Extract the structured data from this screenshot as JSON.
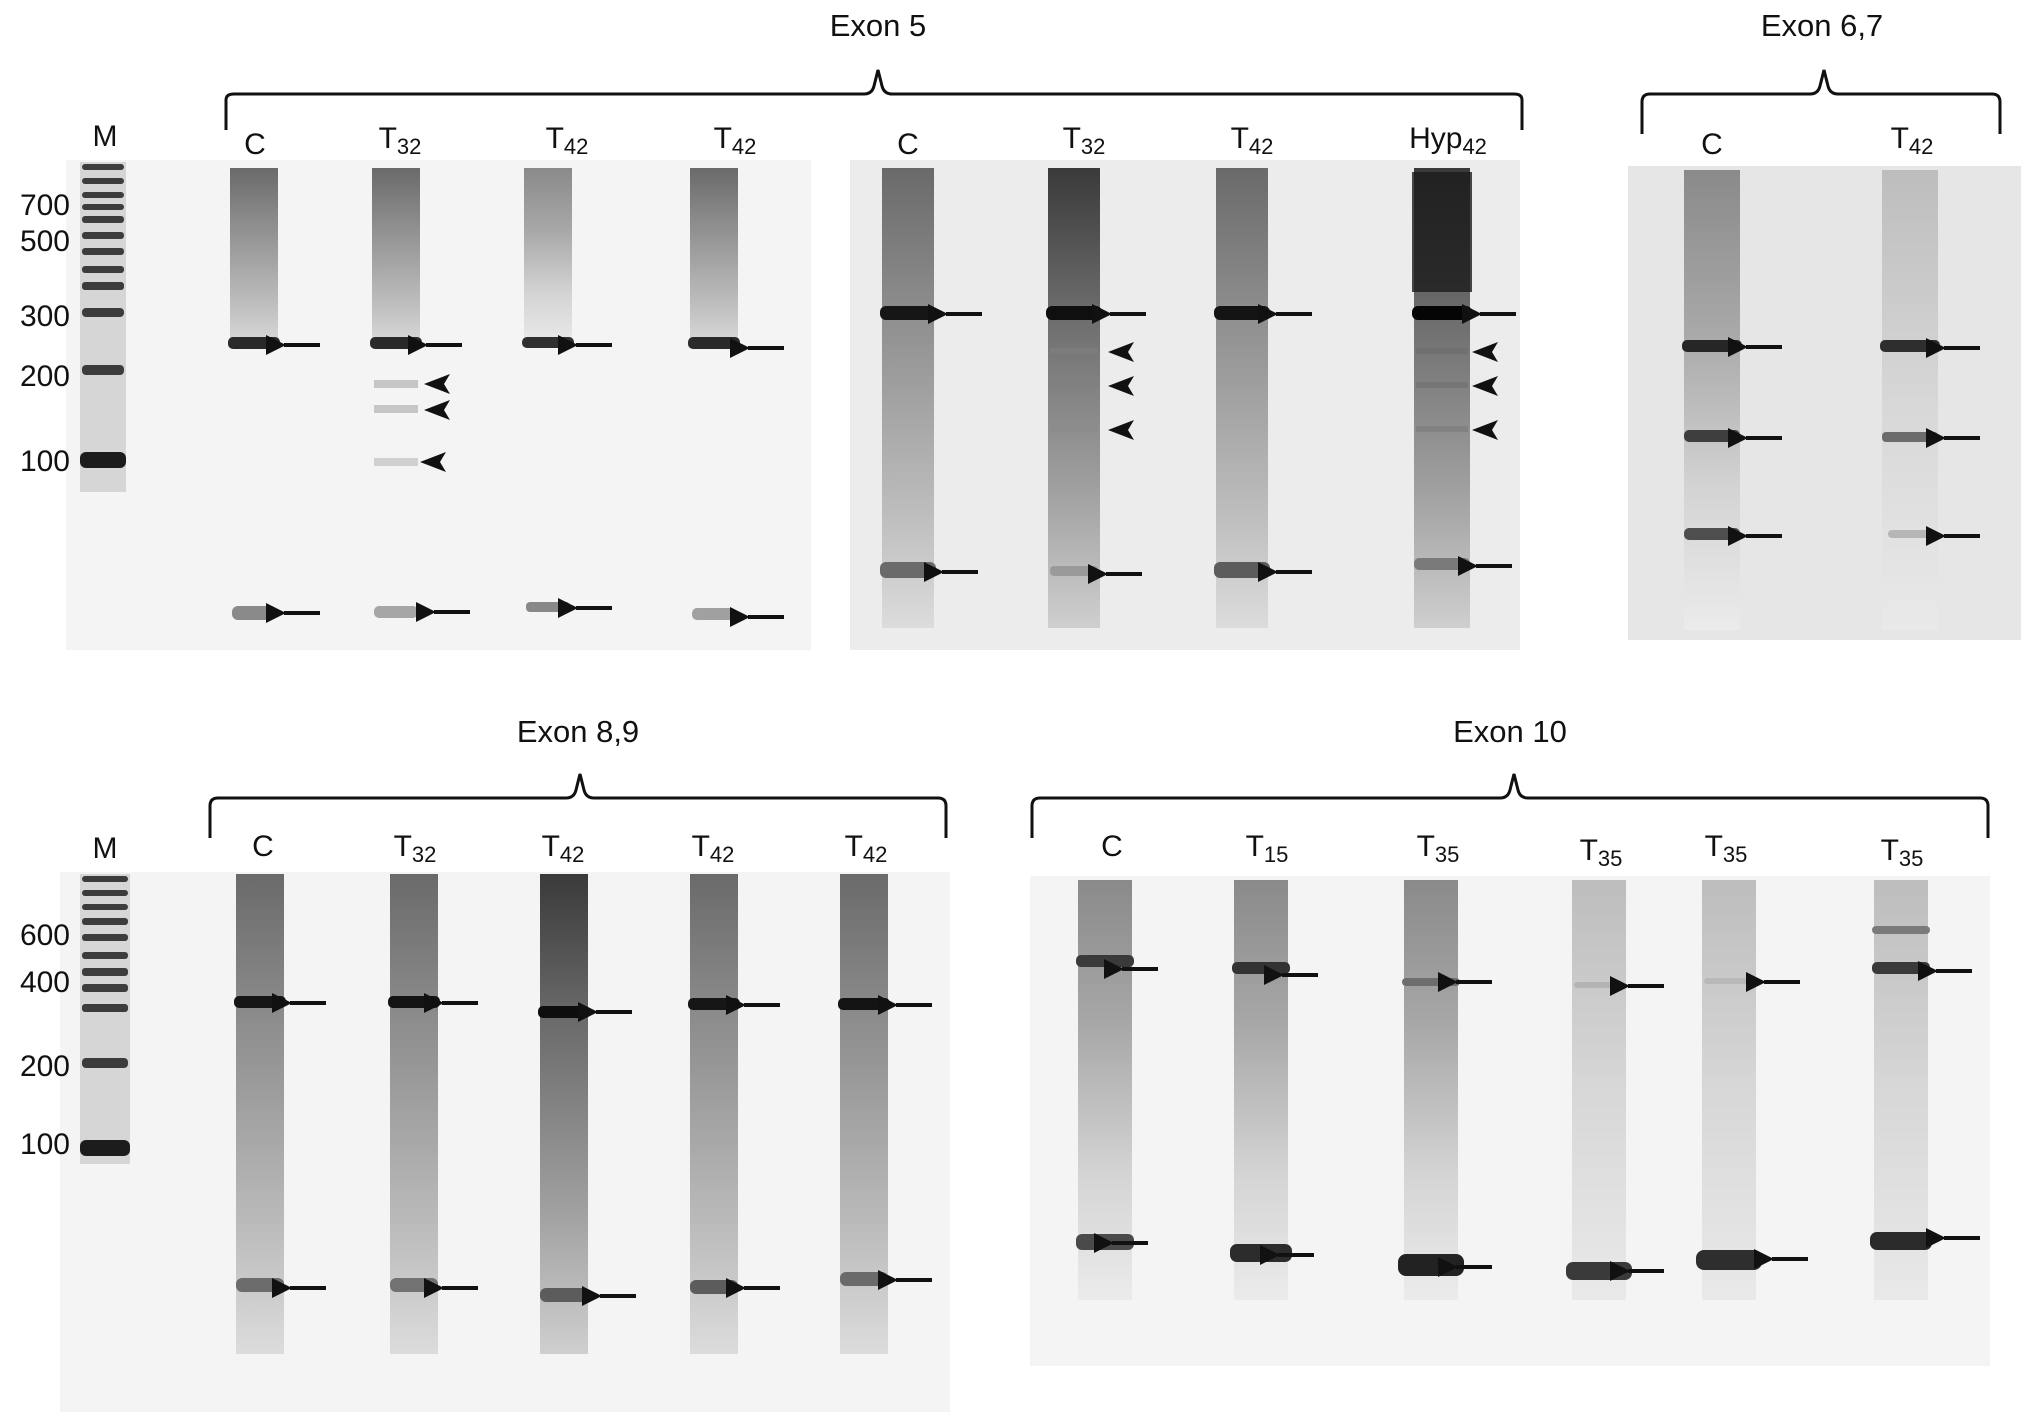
{
  "panels": [
    {
      "title": "Exon 5",
      "lanes": [
        {
          "label": "C",
          "sub": ""
        },
        {
          "label": "T",
          "sub": "32"
        },
        {
          "label": "T",
          "sub": "42"
        },
        {
          "label": "T",
          "sub": "42"
        },
        {
          "label": "C",
          "sub": ""
        },
        {
          "label": "T",
          "sub": "32"
        },
        {
          "label": "T",
          "sub": "42"
        },
        {
          "label": "Hyp",
          "sub": "42"
        }
      ]
    },
    {
      "title": "Exon 6,7",
      "lanes": [
        {
          "label": "C",
          "sub": ""
        },
        {
          "label": "T",
          "sub": "42"
        }
      ]
    },
    {
      "title": "Exon 8,9",
      "lanes": [
        {
          "label": "C",
          "sub": ""
        },
        {
          "label": "T",
          "sub": "32"
        },
        {
          "label": "T",
          "sub": "42"
        },
        {
          "label": "T",
          "sub": "42"
        },
        {
          "label": "T",
          "sub": "42"
        }
      ]
    },
    {
      "title": "Exon 10",
      "lanes": [
        {
          "label": "C",
          "sub": ""
        },
        {
          "label": "T",
          "sub": "15"
        },
        {
          "label": "T",
          "sub": "35"
        },
        {
          "label": "T",
          "sub": "35"
        },
        {
          "label": "T",
          "sub": "35"
        },
        {
          "label": "T",
          "sub": "35"
        }
      ]
    }
  ],
  "markers": [
    {
      "label": "M",
      "sizes": [
        "700",
        "500",
        "300",
        "200",
        "100"
      ]
    },
    {
      "label": "M",
      "sizes": [
        "600",
        "400",
        "200",
        "100"
      ]
    }
  ]
}
